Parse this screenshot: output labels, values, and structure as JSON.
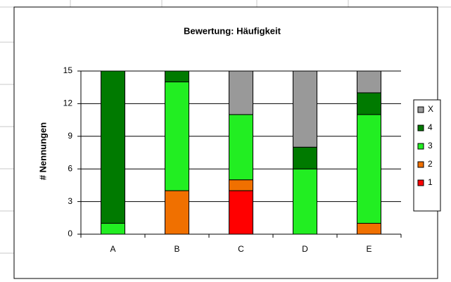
{
  "chart_data": {
    "type": "stacked-bar",
    "title": "Bewertung: Häufigkeit",
    "y_label": "# Nennungen",
    "categories": [
      "A",
      "B",
      "C",
      "D",
      "E"
    ],
    "series": [
      {
        "name": "1",
        "color": "#ff0000",
        "values": [
          0,
          0,
          4,
          0,
          0
        ]
      },
      {
        "name": "2",
        "color": "#f07000",
        "values": [
          0,
          4,
          1,
          0,
          1
        ]
      },
      {
        "name": "3",
        "color": "#22ee22",
        "values": [
          1,
          10,
          6,
          6,
          10
        ]
      },
      {
        "name": "4",
        "color": "#007a00",
        "values": [
          14,
          1,
          0,
          2,
          2
        ]
      },
      {
        "name": "X",
        "color": "#999999",
        "values": [
          0,
          0,
          4,
          7,
          2
        ]
      }
    ],
    "ylim": [
      0,
      15
    ],
    "yticks": [
      0,
      3,
      6,
      9,
      12,
      15
    ],
    "grid": true,
    "legend": "right"
  }
}
